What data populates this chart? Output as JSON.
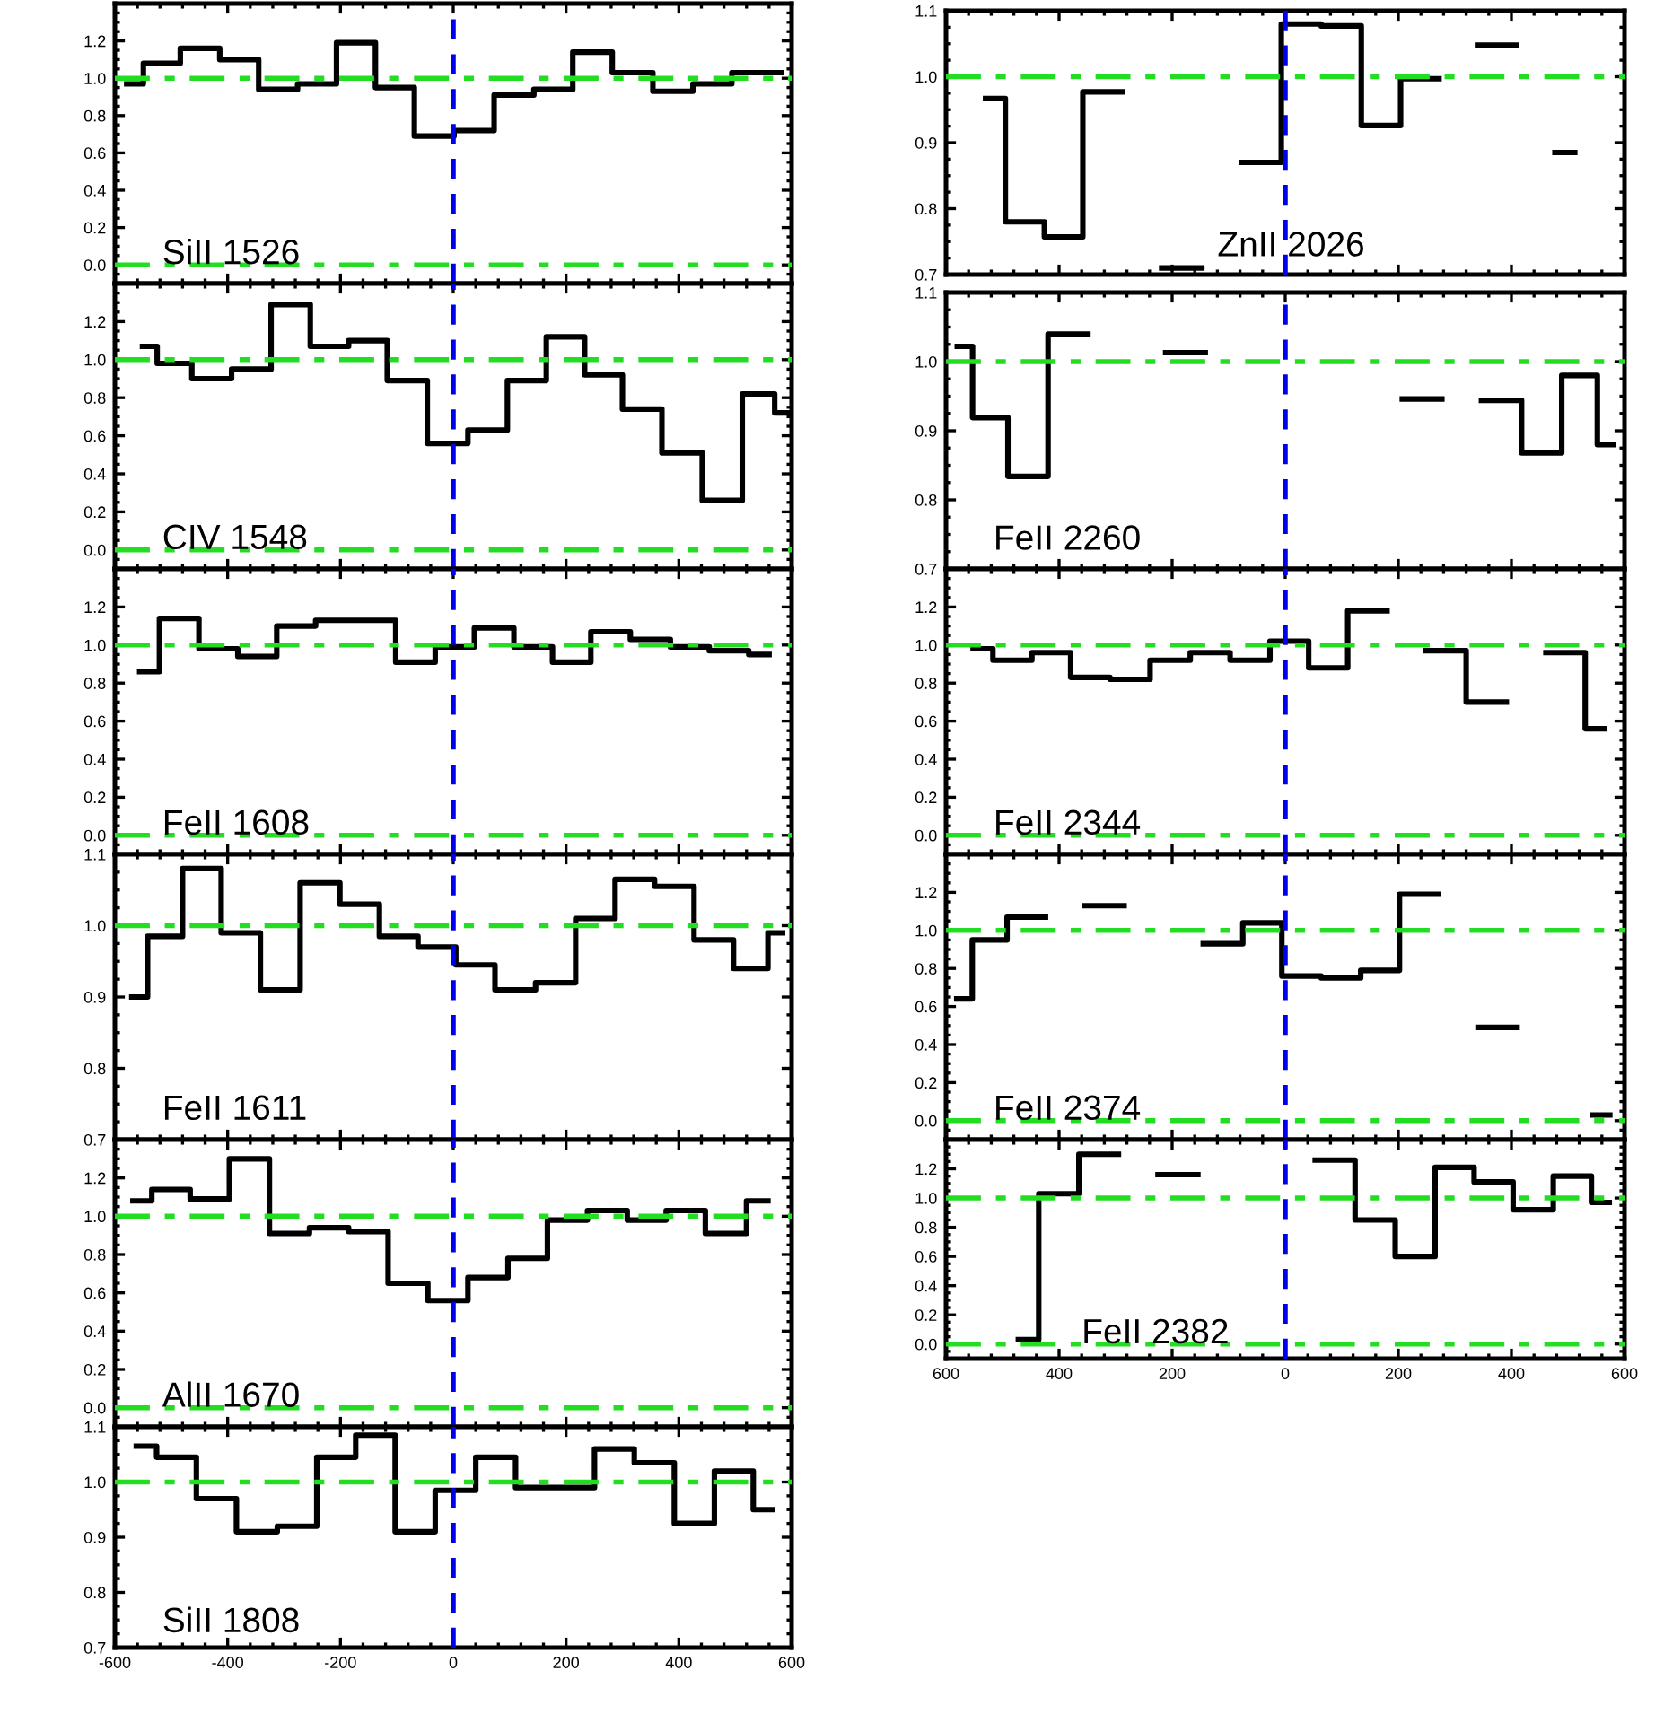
{
  "chart_data": [
    {
      "type": "step",
      "x": [
        -579,
        -520,
        -448,
        -380,
        -310,
        -242,
        -172,
        -104,
        -34,
        37,
        108,
        178,
        246,
        318,
        390,
        460,
        528,
        582
      ],
      "values": [
        0.97,
        1.08,
        1.16,
        1.1,
        0.94,
        0.97,
        1.19,
        0.95,
        0.69,
        0.72,
        0.91,
        0.94,
        1.14,
        1.03,
        0.93,
        0.97,
        1.03,
        1.03
      ],
      "color": "#000000",
      "xlim": [
        -600,
        600
      ],
      "xticks": [
        -600,
        -400,
        -200,
        0,
        200,
        400,
        600
      ],
      "ylim": [
        -0.1,
        1.4
      ],
      "yticks": [
        {
          "value": 0,
          "label": "0.0"
        },
        {
          "value": 0.2,
          "label": "0.2"
        },
        {
          "value": 0.4,
          "label": "0.4"
        },
        {
          "value": 0.6,
          "label": "0.6"
        },
        {
          "value": 0.8,
          "label": "0.8"
        },
        {
          "value": 1.0,
          "label": "1.0"
        },
        {
          "value": 1.2,
          "label": "1.2"
        }
      ],
      "tick_labels": "y",
      "ref_lines": [
        {
          "axis": "y",
          "value": 1,
          "color": "#22dd22",
          "line_style": "dashdot"
        },
        {
          "axis": "y",
          "value": 0,
          "color": "#22dd22",
          "line_style": "dashdot"
        },
        {
          "axis": "x",
          "value": 0,
          "color": "#0000ee",
          "line_style": "dashed"
        }
      ],
      "annotations": [
        "SiII 1526"
      ]
    },
    {
      "type": "step",
      "x": [
        -530,
        -460,
        -392,
        -324,
        -254,
        -183,
        -112,
        -42,
        28,
        99,
        170,
        238,
        306,
        374,
        442,
        512
      ],
      "values": [
        0.967,
        0.78,
        0.757,
        0.977,
        null,
        0.71,
        null,
        0.87,
        1.08,
        1.077,
        0.926,
        0.997,
        null,
        1.048,
        null,
        0.885
      ],
      "color": "#000000",
      "xlim": [
        -600,
        600
      ],
      "xticks": [
        -600,
        -400,
        -200,
        0,
        200,
        400,
        600
      ],
      "ylim": [
        0.7,
        1.1
      ],
      "yticks": [
        {
          "value": 0.7,
          "label": "0.7"
        },
        {
          "value": 0.8,
          "label": "0.8"
        },
        {
          "value": 0.9,
          "label": "0.9"
        },
        {
          "value": 1.0,
          "label": "1.0"
        },
        {
          "value": 1.1,
          "label": "1.1"
        }
      ],
      "tick_labels": "y",
      "ref_lines": [
        {
          "axis": "y",
          "value": 1,
          "color": "#22dd22",
          "line_style": "dashdot"
        },
        {
          "axis": "x",
          "value": 0,
          "color": "#0000ee",
          "line_style": "dashed"
        }
      ],
      "annotations": [
        "ZnII 2026"
      ]
    },
    {
      "type": "step",
      "x": [
        -551,
        -499,
        -428,
        -358,
        -288,
        -219,
        -152,
        -82,
        -10,
        62,
        130,
        200,
        266,
        334,
        406,
        477,
        548,
        592
      ],
      "values": [
        1.07,
        0.98,
        0.9,
        0.95,
        1.29,
        1.07,
        1.1,
        0.89,
        0.56,
        0.63,
        0.89,
        1.12,
        0.92,
        0.74,
        0.51,
        0.26,
        0.82,
        0.72
      ],
      "color": "#000000",
      "xlim": [
        -600,
        600
      ],
      "xticks": [
        -600,
        -400,
        -200,
        0,
        200,
        400,
        600
      ],
      "ylim": [
        -0.1,
        1.4
      ],
      "yticks": [
        {
          "value": 0,
          "label": "0.0"
        },
        {
          "value": 0.2,
          "label": "0.2"
        },
        {
          "value": 0.4,
          "label": "0.4"
        },
        {
          "value": 0.6,
          "label": "0.6"
        },
        {
          "value": 0.8,
          "label": "0.8"
        },
        {
          "value": 1.0,
          "label": "1.0"
        },
        {
          "value": 1.2,
          "label": "1.2"
        }
      ],
      "tick_labels": "y",
      "ref_lines": [
        {
          "axis": "y",
          "value": 1,
          "color": "#22dd22",
          "line_style": "dashdot"
        },
        {
          "axis": "y",
          "value": 0,
          "color": "#22dd22",
          "line_style": "dashdot"
        },
        {
          "axis": "x",
          "value": 0,
          "color": "#0000ee",
          "line_style": "dashed"
        }
      ],
      "annotations": [
        "CIV 1548"
      ]
    },
    {
      "type": "step",
      "x": [
        -580,
        -526,
        -455,
        -384,
        -314,
        -246,
        -177,
        -106,
        -38,
        32,
        102,
        172,
        242,
        312,
        382,
        454,
        524,
        580
      ],
      "values": [
        1.022,
        0.919,
        0.834,
        1.04,
        null,
        null,
        1.013,
        null,
        null,
        null,
        null,
        null,
        0.946,
        null,
        0.944,
        0.868,
        0.98,
        0.88
      ],
      "color": "#000000",
      "xlim": [
        -600,
        600
      ],
      "xticks": [
        -600,
        -400,
        -200,
        0,
        200,
        400,
        600
      ],
      "ylim": [
        0.7,
        1.1
      ],
      "yticks": [
        {
          "value": 0.7,
          "label": "0.7"
        },
        {
          "value": 0.8,
          "label": "0.8"
        },
        {
          "value": 0.9,
          "label": "0.9"
        },
        {
          "value": 1.0,
          "label": "1.0"
        },
        {
          "value": 1.1,
          "label": "1.1"
        }
      ],
      "tick_labels": "y",
      "ref_lines": [
        {
          "axis": "y",
          "value": 1,
          "color": "#22dd22",
          "line_style": "dashdot"
        },
        {
          "axis": "x",
          "value": 0,
          "color": "#0000ee",
          "line_style": "dashed"
        }
      ],
      "annotations": [
        "FeII 2260"
      ]
    },
    {
      "type": "step",
      "x": [
        -556,
        -486,
        -416,
        -348,
        -278,
        -210,
        -138,
        -66,
        2,
        73,
        142,
        210,
        278,
        350,
        420,
        488,
        560
      ],
      "values": [
        0.86,
        1.14,
        0.98,
        0.94,
        1.1,
        1.13,
        1.13,
        0.91,
        0.99,
        1.09,
        0.99,
        0.91,
        1.07,
        1.03,
        0.99,
        0.97,
        0.95
      ],
      "color": "#000000",
      "xlim": [
        -600,
        600
      ],
      "xticks": [
        -600,
        -400,
        -200,
        0,
        200,
        400,
        600
      ],
      "ylim": [
        -0.1,
        1.4
      ],
      "yticks": [
        {
          "value": 0,
          "label": "0.0"
        },
        {
          "value": 0.2,
          "label": "0.2"
        },
        {
          "value": 0.4,
          "label": "0.4"
        },
        {
          "value": 0.6,
          "label": "0.6"
        },
        {
          "value": 0.8,
          "label": "0.8"
        },
        {
          "value": 1.0,
          "label": "1.0"
        },
        {
          "value": 1.2,
          "label": "1.2"
        }
      ],
      "tick_labels": "y",
      "ref_lines": [
        {
          "axis": "y",
          "value": 1,
          "color": "#22dd22",
          "line_style": "dashdot"
        },
        {
          "axis": "y",
          "value": 0,
          "color": "#22dd22",
          "line_style": "dashdot"
        },
        {
          "axis": "x",
          "value": 0,
          "color": "#0000ee",
          "line_style": "dashed"
        }
      ],
      "annotations": [
        "FeII 1608"
      ]
    },
    {
      "type": "step",
      "x": [
        -552,
        -482,
        -414,
        -345,
        -275,
        -203,
        -133,
        -62,
        8,
        75,
        146,
        214,
        284,
        356,
        426,
        496,
        565
      ],
      "values": [
        0.98,
        0.92,
        0.96,
        0.83,
        0.82,
        0.92,
        0.96,
        0.92,
        1.02,
        0.88,
        1.18,
        null,
        0.97,
        0.7,
        null,
        0.96,
        0.56
      ],
      "color": "#000000",
      "xlim": [
        -600,
        600
      ],
      "xticks": [
        -600,
        -400,
        -200,
        0,
        200,
        400,
        600
      ],
      "ylim": [
        -0.1,
        1.4
      ],
      "yticks": [
        {
          "value": 0,
          "label": "0.0"
        },
        {
          "value": 0.2,
          "label": "0.2"
        },
        {
          "value": 0.4,
          "label": "0.4"
        },
        {
          "value": 0.6,
          "label": "0.6"
        },
        {
          "value": 0.8,
          "label": "0.8"
        },
        {
          "value": 1.0,
          "label": "1.0"
        },
        {
          "value": 1.2,
          "label": "1.2"
        }
      ],
      "tick_labels": "y",
      "ref_lines": [
        {
          "axis": "y",
          "value": 1,
          "color": "#22dd22",
          "line_style": "dashdot"
        },
        {
          "axis": "y",
          "value": 0,
          "color": "#22dd22",
          "line_style": "dashdot"
        },
        {
          "axis": "x",
          "value": 0,
          "color": "#0000ee",
          "line_style": "dashed"
        }
      ],
      "annotations": [
        "FeII 2344"
      ]
    },
    {
      "type": "step",
      "x": [
        -570,
        -514,
        -446,
        -377,
        -307,
        -236,
        -166,
        -96,
        -29,
        38,
        110,
        182,
        252,
        322,
        392,
        462,
        532,
        584
      ],
      "values": [
        0.9,
        0.985,
        1.08,
        0.99,
        0.91,
        1.06,
        1.03,
        0.985,
        0.97,
        0.945,
        0.91,
        0.92,
        1.01,
        1.065,
        1.055,
        0.98,
        0.94,
        0.99
      ],
      "color": "#000000",
      "xlim": [
        -600,
        600
      ],
      "xticks": [
        -600,
        -400,
        -200,
        0,
        200,
        400,
        600
      ],
      "ylim": [
        0.7,
        1.1
      ],
      "yticks": [
        {
          "value": 0.7,
          "label": "0.7"
        },
        {
          "value": 0.8,
          "label": "0.8"
        },
        {
          "value": 0.9,
          "label": "0.9"
        },
        {
          "value": 1.0,
          "label": "1.0"
        },
        {
          "value": 1.1,
          "label": "1.1"
        }
      ],
      "tick_labels": "y",
      "ref_lines": [
        {
          "axis": "y",
          "value": 1,
          "color": "#22dd22",
          "line_style": "dashdot"
        },
        {
          "axis": "x",
          "value": 0,
          "color": "#0000ee",
          "line_style": "dashed"
        }
      ],
      "annotations": [
        "FeII 1611"
      ]
    },
    {
      "type": "step",
      "x": [
        -581,
        -526,
        -458,
        -390,
        -320,
        -250,
        -180,
        -110,
        -40,
        28,
        99,
        168,
        236,
        306,
        376,
        444,
        514,
        574
      ],
      "values": [
        0.64,
        0.95,
        1.07,
        null,
        1.13,
        null,
        null,
        0.93,
        1.04,
        0.76,
        0.75,
        0.79,
        1.19,
        null,
        0.49,
        null,
        null,
        0.03
      ],
      "color": "#000000",
      "xlim": [
        -600,
        600
      ],
      "xticks": [
        -600,
        -400,
        -200,
        0,
        200,
        400,
        600
      ],
      "ylim": [
        -0.1,
        1.4
      ],
      "yticks": [
        {
          "value": 0,
          "label": "0.0"
        },
        {
          "value": 0.2,
          "label": "0.2"
        },
        {
          "value": 0.4,
          "label": "0.4"
        },
        {
          "value": 0.6,
          "label": "0.6"
        },
        {
          "value": 0.8,
          "label": "0.8"
        },
        {
          "value": 1.0,
          "label": "1.0"
        },
        {
          "value": 1.2,
          "label": "1.2"
        }
      ],
      "tick_labels": "y",
      "ref_lines": [
        {
          "axis": "y",
          "value": 1,
          "color": "#22dd22",
          "line_style": "dashdot"
        },
        {
          "axis": "y",
          "value": 0,
          "color": "#22dd22",
          "line_style": "dashdot"
        },
        {
          "axis": "x",
          "value": 0,
          "color": "#0000ee",
          "line_style": "dashed"
        }
      ],
      "annotations": [
        "FeII 2374"
      ]
    },
    {
      "type": "step",
      "x": [
        -568,
        -501,
        -432,
        -362,
        -290,
        -220,
        -151,
        -80,
        -10,
        62,
        132,
        202,
        274,
        343,
        412,
        482,
        558
      ],
      "values": [
        1.08,
        1.14,
        1.09,
        1.3,
        0.91,
        0.94,
        0.92,
        0.65,
        0.56,
        0.68,
        0.78,
        0.98,
        1.03,
        0.98,
        1.03,
        0.91,
        1.08
      ],
      "color": "#000000",
      "xlim": [
        -600,
        600
      ],
      "xticks": [
        -600,
        -400,
        -200,
        0,
        200,
        400,
        600
      ],
      "ylim": [
        -0.1,
        1.4
      ],
      "yticks": [
        {
          "value": 0,
          "label": "0.0"
        },
        {
          "value": 0.2,
          "label": "0.2"
        },
        {
          "value": 0.4,
          "label": "0.4"
        },
        {
          "value": 0.6,
          "label": "0.6"
        },
        {
          "value": 0.8,
          "label": "0.8"
        },
        {
          "value": 1.0,
          "label": "1.0"
        },
        {
          "value": 1.2,
          "label": "1.2"
        }
      ],
      "tick_labels": "y",
      "ref_lines": [
        {
          "axis": "y",
          "value": 1,
          "color": "#22dd22",
          "line_style": "dashdot"
        },
        {
          "axis": "y",
          "value": 0,
          "color": "#22dd22",
          "line_style": "dashdot"
        },
        {
          "axis": "x",
          "value": 0,
          "color": "#0000ee",
          "line_style": "dashed"
        }
      ],
      "annotations": [
        "AlII 1670"
      ]
    },
    {
      "type": "step",
      "x": [
        -472,
        -400,
        -330,
        -260,
        -190,
        -119,
        -51,
        18,
        88,
        159,
        230,
        300,
        368,
        438,
        510,
        573
      ],
      "values": [
        0.03,
        1.03,
        1.3,
        null,
        1.16,
        null,
        null,
        null,
        1.26,
        0.85,
        0.6,
        1.21,
        1.11,
        0.92,
        1.15,
        0.97
      ],
      "color": "#000000",
      "xlim": [
        -600,
        600
      ],
      "xticks": [
        {
          "value": -600,
          "label": "600"
        },
        {
          "value": -400,
          "label": "400"
        },
        {
          "value": -200,
          "label": "200"
        },
        0,
        200,
        400,
        600
      ],
      "ylim": [
        -0.1,
        1.4
      ],
      "yticks": [
        {
          "value": 0,
          "label": "0.0"
        },
        {
          "value": 0.2,
          "label": "0.2"
        },
        {
          "value": 0.4,
          "label": "0.4"
        },
        {
          "value": 0.6,
          "label": "0.6"
        },
        {
          "value": 0.8,
          "label": "0.8"
        },
        {
          "value": 1.0,
          "label": "1.0"
        },
        {
          "value": 1.2,
          "label": "1.2"
        }
      ],
      "ref_lines": [
        {
          "axis": "y",
          "value": 1,
          "color": "#22dd22",
          "line_style": "dashdot"
        },
        {
          "axis": "y",
          "value": 0,
          "color": "#22dd22",
          "line_style": "dashdot"
        },
        {
          "axis": "x",
          "value": 0,
          "color": "#0000ee",
          "line_style": "dashed"
        }
      ],
      "annotations": [
        "FeII 2382"
      ]
    },
    {
      "type": "step",
      "x": [
        -562,
        -490,
        -421,
        -348,
        -276,
        -208,
        -138,
        -68,
        4,
        76,
        145,
        215,
        286,
        356,
        428,
        498,
        566
      ],
      "values": [
        1.065,
        1.045,
        0.97,
        0.91,
        0.92,
        1.045,
        1.085,
        0.91,
        0.985,
        1.045,
        0.99,
        0.99,
        1.06,
        1.035,
        0.925,
        1.02,
        0.95
      ],
      "color": "#000000",
      "xlim": [
        -600,
        600
      ],
      "xticks": [
        -600,
        -400,
        -200,
        0,
        200,
        400,
        600
      ],
      "ylim": [
        0.7,
        1.1
      ],
      "yticks": [
        {
          "value": 0.7,
          "label": "0.7"
        },
        {
          "value": 0.8,
          "label": "0.8"
        },
        {
          "value": 0.9,
          "label": "0.9"
        },
        {
          "value": 1.0,
          "label": "1.0"
        },
        {
          "value": 1.1,
          "label": "1.1"
        }
      ],
      "ref_lines": [
        {
          "axis": "y",
          "value": 1,
          "color": "#22dd22",
          "line_style": "dashdot"
        },
        {
          "axis": "x",
          "value": 0,
          "color": "#0000ee",
          "line_style": "dashed"
        }
      ],
      "annotations": [
        "SiII 1808"
      ]
    }
  ]
}
